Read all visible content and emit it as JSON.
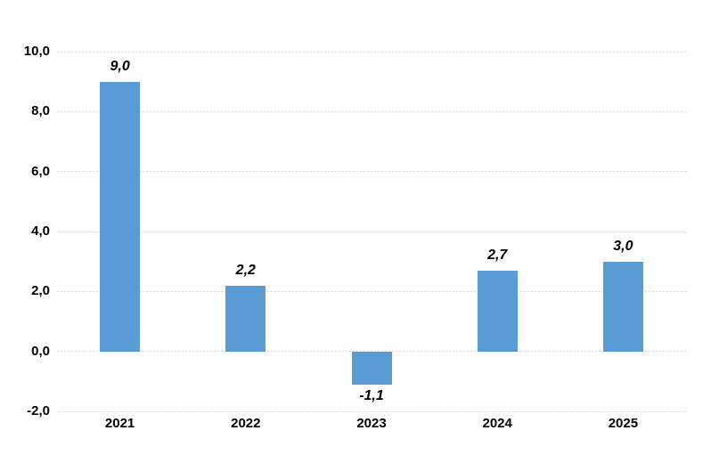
{
  "colors": {
    "background": "#FFFFFF",
    "bar": "#5B9BD5",
    "gridline": "#D6D6D6",
    "text": "#000000"
  },
  "chart_data": {
    "type": "bar",
    "title": "",
    "xlabel": "",
    "ylabel": "",
    "categories": [
      "2021",
      "2022",
      "2023",
      "2024",
      "2025"
    ],
    "values": [
      9.0,
      2.2,
      -1.1,
      2.7,
      3.0
    ],
    "value_labels": [
      "9,0",
      "2,2",
      "-1,1",
      "2,7",
      "3,0"
    ],
    "ylim": [
      -2,
      10
    ],
    "y_ticks": [
      10,
      8,
      6,
      4,
      2,
      0,
      -2
    ],
    "y_tick_labels": [
      "10,0",
      "8,0",
      "6,0",
      "4,0",
      "2,0",
      "0,0",
      "-2,0"
    ],
    "decimal_separator": ",",
    "grid": true,
    "gridline_style": "dotted",
    "legend": false,
    "bar_color": "#5B9BD5",
    "value_label_style": "bold-italic",
    "negative_label_position": "below-bar"
  }
}
